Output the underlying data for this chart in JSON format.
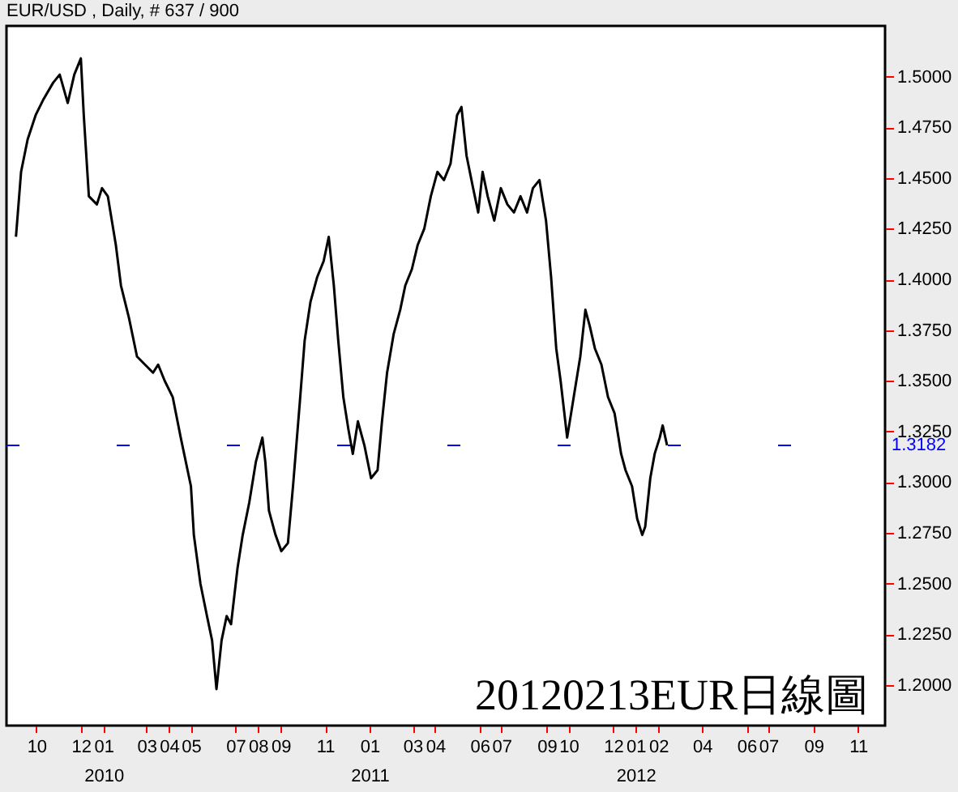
{
  "chart_data": {
    "type": "line",
    "title": "EUR/USD , Daily, # 637 / 900",
    "x": [
      "2009-09-03",
      "2009-09-10",
      "2009-09-19",
      "2009-09-30",
      "2009-10-11",
      "2009-10-24",
      "2009-11-02",
      "2009-11-13",
      "2009-11-22",
      "2009-12-01",
      "2009-12-05",
      "2009-12-12",
      "2009-12-23",
      "2009-12-30",
      "2010-01-07",
      "2010-01-18",
      "2010-01-25",
      "2010-02-05",
      "2010-02-16",
      "2010-02-27",
      "2010-03-10",
      "2010-03-17",
      "2010-03-26",
      "2010-04-06",
      "2010-04-17",
      "2010-05-01",
      "2010-05-05",
      "2010-05-14",
      "2010-05-23",
      "2010-05-30",
      "2010-06-05",
      "2010-06-12",
      "2010-06-19",
      "2010-06-25",
      "2010-07-04",
      "2010-07-11",
      "2010-07-20",
      "2010-07-29",
      "2010-08-07",
      "2010-08-11",
      "2010-08-16",
      "2010-08-25",
      "2010-09-02",
      "2010-09-11",
      "2010-09-18",
      "2010-09-27",
      "2010-10-04",
      "2010-10-12",
      "2010-10-21",
      "2010-10-30",
      "2010-11-06",
      "2010-11-13",
      "2010-11-19",
      "2010-11-26",
      "2010-12-03",
      "2010-12-09",
      "2010-12-16",
      "2010-12-25",
      "2011-01-03",
      "2011-01-12",
      "2011-01-18",
      "2011-01-25",
      "2011-02-03",
      "2011-02-12",
      "2011-02-19",
      "2011-02-28",
      "2011-03-08",
      "2011-03-17",
      "2011-03-26",
      "2011-04-04",
      "2011-04-13",
      "2011-04-22",
      "2011-05-01",
      "2011-05-07",
      "2011-05-14",
      "2011-05-23",
      "2011-05-30",
      "2011-06-05",
      "2011-06-12",
      "2011-06-21",
      "2011-06-30",
      "2011-07-09",
      "2011-07-18",
      "2011-07-27",
      "2011-08-05",
      "2011-08-13",
      "2011-08-22",
      "2011-08-31",
      "2011-09-07",
      "2011-09-14",
      "2011-09-20",
      "2011-09-29",
      "2011-10-08",
      "2011-10-17",
      "2011-10-24",
      "2011-10-30",
      "2011-11-06",
      "2011-11-15",
      "2011-11-24",
      "2011-12-03",
      "2011-12-12",
      "2011-12-18",
      "2011-12-27",
      "2012-01-03",
      "2012-01-10",
      "2012-01-14",
      "2012-01-21",
      "2012-01-27",
      "2012-02-03",
      "2012-02-07",
      "2012-02-13"
    ],
    "series": [
      {
        "color": "#000000",
        "values": [
          1.421,
          1.453,
          1.469,
          1.481,
          1.489,
          1.497,
          1.501,
          1.487,
          1.501,
          1.509,
          1.481,
          1.441,
          1.437,
          1.445,
          1.441,
          1.417,
          1.397,
          1.381,
          1.362,
          1.358,
          1.354,
          1.358,
          1.35,
          1.342,
          1.322,
          1.298,
          1.274,
          1.25,
          1.234,
          1.222,
          1.198,
          1.222,
          1.234,
          1.23,
          1.258,
          1.274,
          1.29,
          1.31,
          1.322,
          1.31,
          1.286,
          1.274,
          1.266,
          1.27,
          1.298,
          1.338,
          1.37,
          1.389,
          1.401,
          1.409,
          1.421,
          1.397,
          1.37,
          1.342,
          1.326,
          1.314,
          1.33,
          1.318,
          1.302,
          1.306,
          1.33,
          1.354,
          1.373,
          1.385,
          1.397,
          1.405,
          1.417,
          1.425,
          1.441,
          1.453,
          1.449,
          1.457,
          1.481,
          1.485,
          1.461,
          1.445,
          1.433,
          1.453,
          1.441,
          1.429,
          1.445,
          1.437,
          1.433,
          1.441,
          1.433,
          1.445,
          1.449,
          1.429,
          1.401,
          1.366,
          1.35,
          1.322,
          1.342,
          1.362,
          1.385,
          1.377,
          1.366,
          1.358,
          1.342,
          1.334,
          1.314,
          1.306,
          1.298,
          1.282,
          1.274,
          1.278,
          1.302,
          1.314,
          1.322,
          1.328,
          1.3182
        ]
      }
    ],
    "xlim": [
      "2009-08-21",
      "2012-12-08"
    ],
    "xticks": [
      {
        "value": "2009-10-01",
        "label": "10"
      },
      {
        "value": "2009-12-01",
        "label": "12"
      },
      {
        "value": "2010-01-01",
        "label": "01\n2010"
      },
      {
        "value": "2010-03-01",
        "label": "03"
      },
      {
        "value": "2010-04-01",
        "label": "04"
      },
      {
        "value": "2010-05-01",
        "label": "05"
      },
      {
        "value": "2010-07-01",
        "label": "07"
      },
      {
        "value": "2010-08-01",
        "label": "08"
      },
      {
        "value": "2010-09-01",
        "label": "09"
      },
      {
        "value": "2010-11-01",
        "label": "11"
      },
      {
        "value": "2011-01-01",
        "label": "01\n2011"
      },
      {
        "value": "2011-03-01",
        "label": "03"
      },
      {
        "value": "2011-04-01",
        "label": "04"
      },
      {
        "value": "2011-06-01",
        "label": "06"
      },
      {
        "value": "2011-07-01",
        "label": "07"
      },
      {
        "value": "2011-09-01",
        "label": "09"
      },
      {
        "value": "2011-10-01",
        "label": "10"
      },
      {
        "value": "2011-12-01",
        "label": "12"
      },
      {
        "value": "2012-01-01",
        "label": "01\n2012"
      },
      {
        "value": "2012-02-01",
        "label": "02"
      },
      {
        "value": "2012-04-01",
        "label": "04"
      },
      {
        "value": "2012-06-01",
        "label": "06"
      },
      {
        "value": "2012-07-01",
        "label": "07"
      },
      {
        "value": "2012-09-01",
        "label": "09"
      },
      {
        "value": "2012-11-01",
        "label": "11"
      }
    ],
    "ylim": [
      1.18,
      1.525
    ],
    "yticks": [
      {
        "value": 1.2,
        "label": "1.2000"
      },
      {
        "value": 1.225,
        "label": "1.2250"
      },
      {
        "value": 1.25,
        "label": "1.2500"
      },
      {
        "value": 1.275,
        "label": "1.2750"
      },
      {
        "value": 1.3,
        "label": "1.3000"
      },
      {
        "value": 1.325,
        "label": "1.3250"
      },
      {
        "value": 1.35,
        "label": "1.3500"
      },
      {
        "value": 1.375,
        "label": "1.3750"
      },
      {
        "value": 1.4,
        "label": "1.4000"
      },
      {
        "value": 1.425,
        "label": "1.4250"
      },
      {
        "value": 1.45,
        "label": "1.4500"
      },
      {
        "value": 1.475,
        "label": "1.4750"
      },
      {
        "value": 1.5,
        "label": "1.5000"
      }
    ],
    "annotations": [
      "20120213EUR日線圖"
    ],
    "ref_lines": [
      {
        "axis": "y",
        "value": 1.3182,
        "label": "1.3182",
        "color": "#0000ff",
        "line_style": "dashed"
      }
    ],
    "grid": false,
    "marker": "none",
    "line_style": "solid"
  }
}
